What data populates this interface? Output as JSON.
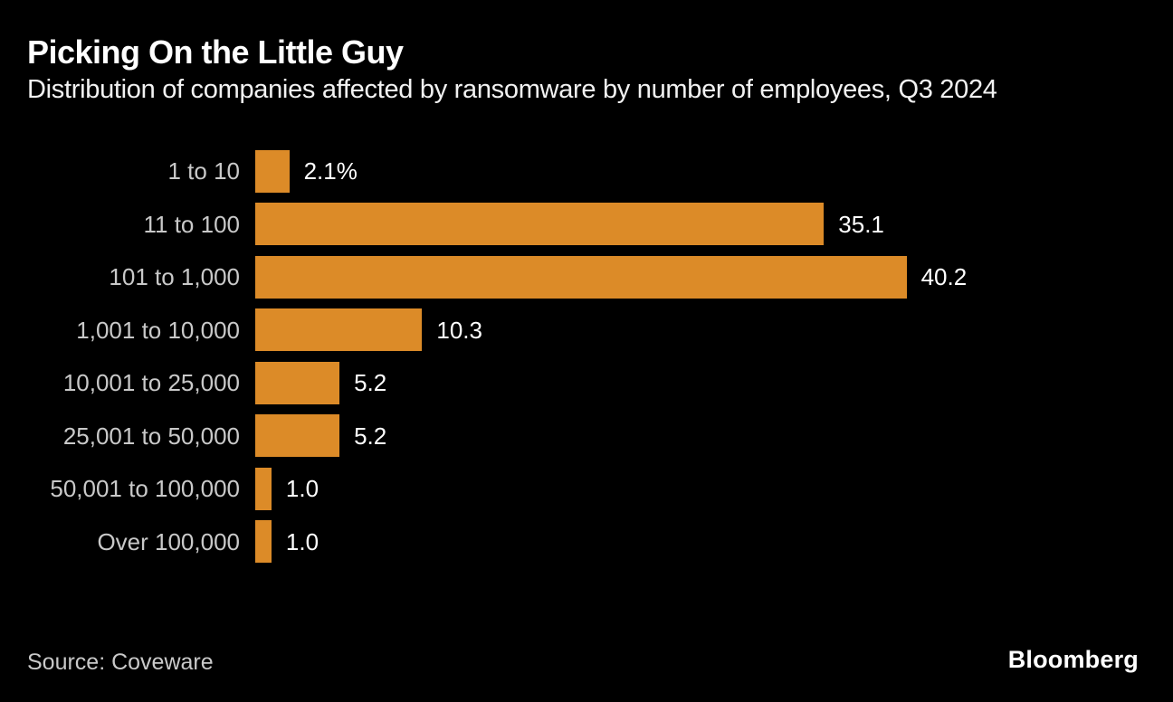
{
  "header": {
    "title": "Picking On the Little Guy",
    "subtitle": "Distribution of companies affected by ransomware by number of employees, Q3 2024"
  },
  "footer": {
    "source": "Source: Coveware",
    "brand": "Bloomberg"
  },
  "chart_data": {
    "type": "bar",
    "orientation": "horizontal",
    "title": "Picking On the Little Guy",
    "subtitle": "Distribution of companies affected by ransomware by number of employees, Q3 2024",
    "unit": "%",
    "categories": [
      "1 to 10",
      "11 to 100",
      "101 to 1,000",
      "1,001 to 10,000",
      "10,001 to 25,000",
      "25,001 to 50,000",
      "50,001 to 100,000",
      "Over 100,000"
    ],
    "values": [
      2.1,
      35.1,
      40.2,
      10.3,
      5.2,
      5.2,
      1.0,
      1.0
    ],
    "value_labels": [
      "2.1%",
      "35.1",
      "40.2",
      "10.3",
      "5.2",
      "5.2",
      "1.0",
      "1.0"
    ],
    "xlim": [
      0,
      40.2
    ],
    "grid": false,
    "legend": false,
    "colors": {
      "background": "#000000",
      "bar": "#DC8B28",
      "category_label": "#C9C9C9",
      "value_label": "#FFFFFF",
      "title": "#FFFFFF",
      "subtitle": "#F2F2F2",
      "source": "#C9C9C9"
    },
    "source": "Coveware"
  }
}
